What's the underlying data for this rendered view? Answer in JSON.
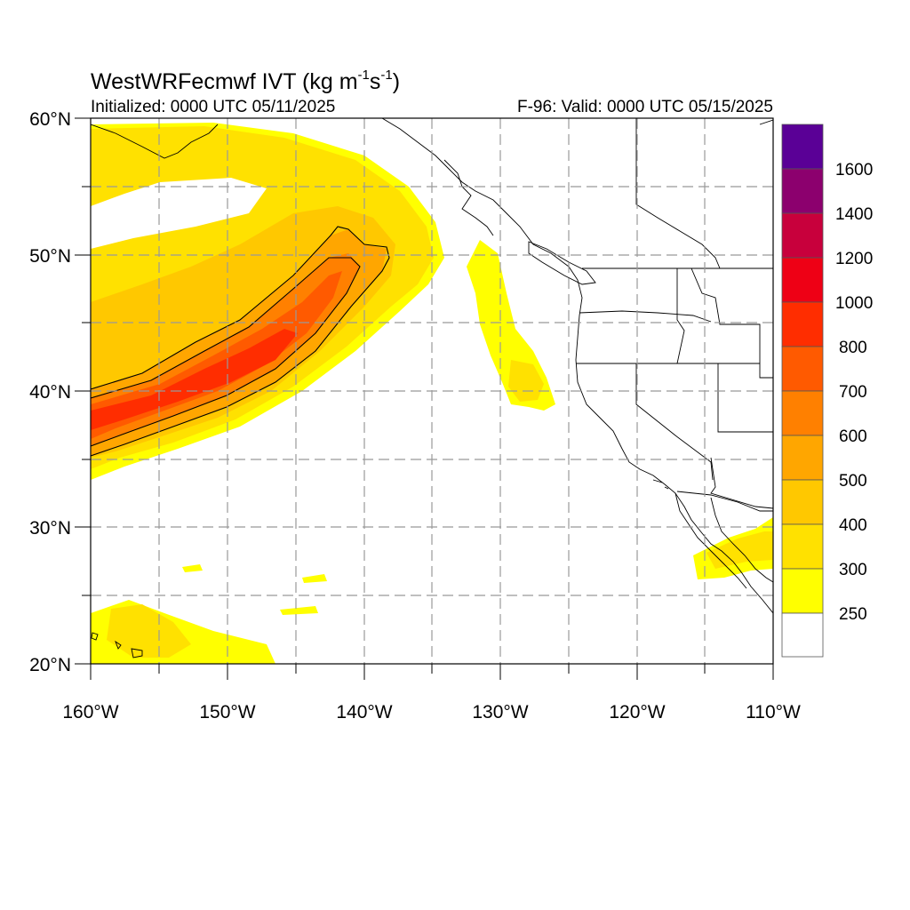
{
  "title": {
    "model": "WestWRFecmwf",
    "variable": "IVT",
    "units_open": "(kg m",
    "units_exp1": "-1",
    "units_mid": "s",
    "units_exp2": "-1",
    "units_close": ")"
  },
  "initialized_label": "Initialized: 0000 UTC 05/11/2025",
  "valid_label": "F-96: Valid: 0000 UTC 05/15/2025",
  "map": {
    "lon_range": [
      -160,
      -110
    ],
    "lat_range": [
      20,
      60
    ],
    "lon_ticks": [
      {
        "value": -160,
        "label": "160°W"
      },
      {
        "value": -150,
        "label": "150°W"
      },
      {
        "value": -140,
        "label": "140°W"
      },
      {
        "value": -130,
        "label": "130°W"
      },
      {
        "value": -120,
        "label": "120°W"
      },
      {
        "value": -110,
        "label": "110°W"
      }
    ],
    "lat_ticks": [
      {
        "value": 20,
        "label": "20°N"
      },
      {
        "value": 30,
        "label": "30°N"
      },
      {
        "value": 40,
        "label": "40°N"
      },
      {
        "value": 50,
        "label": "50°N"
      },
      {
        "value": 60,
        "label": "60°N"
      }
    ],
    "gridlines": "dashed, every 5°",
    "contour_levels": [
      250,
      300,
      400,
      500,
      600,
      700,
      800,
      1000,
      1200,
      1400,
      1600
    ],
    "outlined_contour_levels": [
      250,
      500
    ]
  },
  "colorbar": {
    "labels": [
      "250",
      "300",
      "400",
      "500",
      "600",
      "700",
      "800",
      "1000",
      "1200",
      "1400",
      "1600"
    ],
    "colors": [
      "#ffffff",
      "#ffff00",
      "#ffe100",
      "#ffc800",
      "#ffa600",
      "#ff8000",
      "#ff5a00",
      "#ff2d00",
      "#ee0015",
      "#c8003c",
      "#8c006e",
      "#5a0096"
    ]
  }
}
